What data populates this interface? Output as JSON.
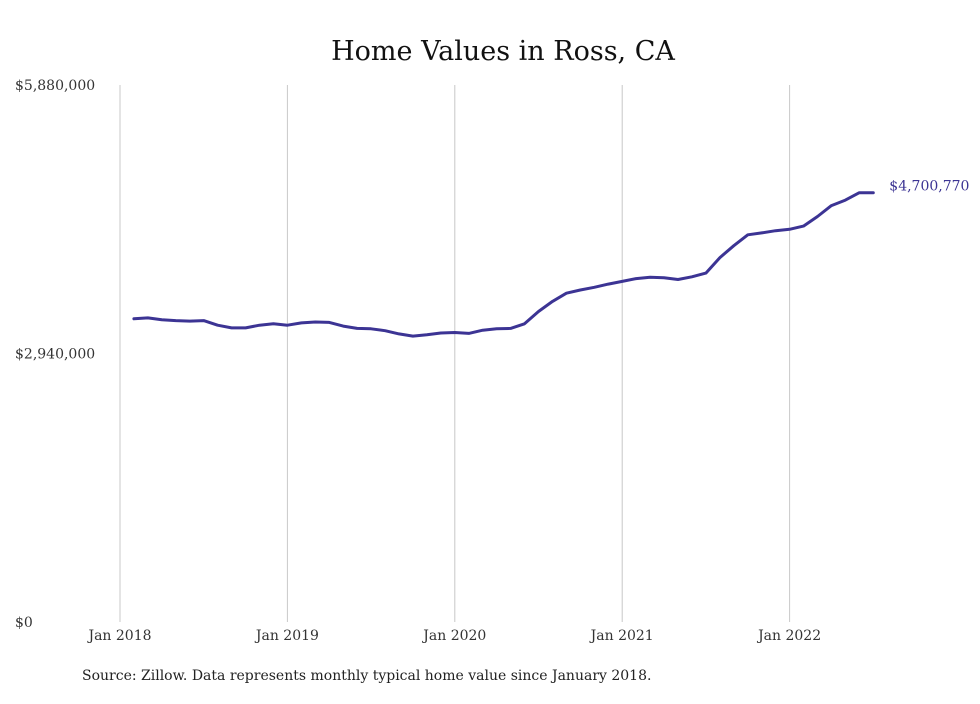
{
  "chart_data": {
    "type": "line",
    "title": "Home Values in Ross, CA",
    "xlabel": "",
    "ylabel": "",
    "ylim": [
      0,
      5880000
    ],
    "y_ticks": [
      {
        "value": 0,
        "label": "$0"
      },
      {
        "value": 2940000,
        "label": "$2,940,000"
      },
      {
        "value": 5880000,
        "label": "$5,880,000"
      }
    ],
    "x_ticks": [
      {
        "value": "2018-01",
        "label": "Jan 2018"
      },
      {
        "value": "2019-01",
        "label": "Jan 2019"
      },
      {
        "value": "2020-01",
        "label": "Jan 2020"
      },
      {
        "value": "2021-01",
        "label": "Jan 2021"
      },
      {
        "value": "2022-01",
        "label": "Jan 2022"
      }
    ],
    "grid": {
      "vertical": true,
      "horizontal": false
    },
    "line_color": "#3c3494",
    "x": [
      "2018-02",
      "2018-03",
      "2018-04",
      "2018-05",
      "2018-06",
      "2018-07",
      "2018-08",
      "2018-09",
      "2018-10",
      "2018-11",
      "2018-12",
      "2019-01",
      "2019-02",
      "2019-03",
      "2019-04",
      "2019-05",
      "2019-06",
      "2019-07",
      "2019-08",
      "2019-09",
      "2019-10",
      "2019-11",
      "2019-12",
      "2020-01",
      "2020-02",
      "2020-03",
      "2020-04",
      "2020-05",
      "2020-06",
      "2020-07",
      "2020-08",
      "2020-09",
      "2020-10",
      "2020-11",
      "2020-12",
      "2021-01",
      "2021-02",
      "2021-03",
      "2021-04",
      "2021-05",
      "2021-06",
      "2021-07",
      "2021-08",
      "2021-09",
      "2021-10",
      "2021-11",
      "2021-12",
      "2022-01",
      "2022-02",
      "2022-03",
      "2022-04",
      "2022-05",
      "2022-06",
      "2022-07"
    ],
    "series": [
      {
        "values": [
          3320000,
          3330000,
          3310000,
          3300000,
          3295000,
          3300000,
          3250000,
          3220000,
          3220000,
          3250000,
          3265000,
          3250000,
          3275000,
          3285000,
          3280000,
          3240000,
          3215000,
          3210000,
          3190000,
          3155000,
          3130000,
          3145000,
          3165000,
          3170000,
          3160000,
          3195000,
          3210000,
          3215000,
          3265000,
          3400000,
          3510000,
          3600000,
          3635000,
          3665000,
          3700000,
          3730000,
          3760000,
          3775000,
          3770000,
          3750000,
          3780000,
          3820000,
          3990000,
          4120000,
          4240000,
          4260000,
          4285000,
          4300000,
          4335000,
          4440000,
          4560000,
          4620000,
          4700770,
          4700770
        ]
      }
    ],
    "end_label": "$4,700,770"
  },
  "footer": {
    "source": "Source: Zillow. Data represents monthly typical home value since January 2018."
  }
}
